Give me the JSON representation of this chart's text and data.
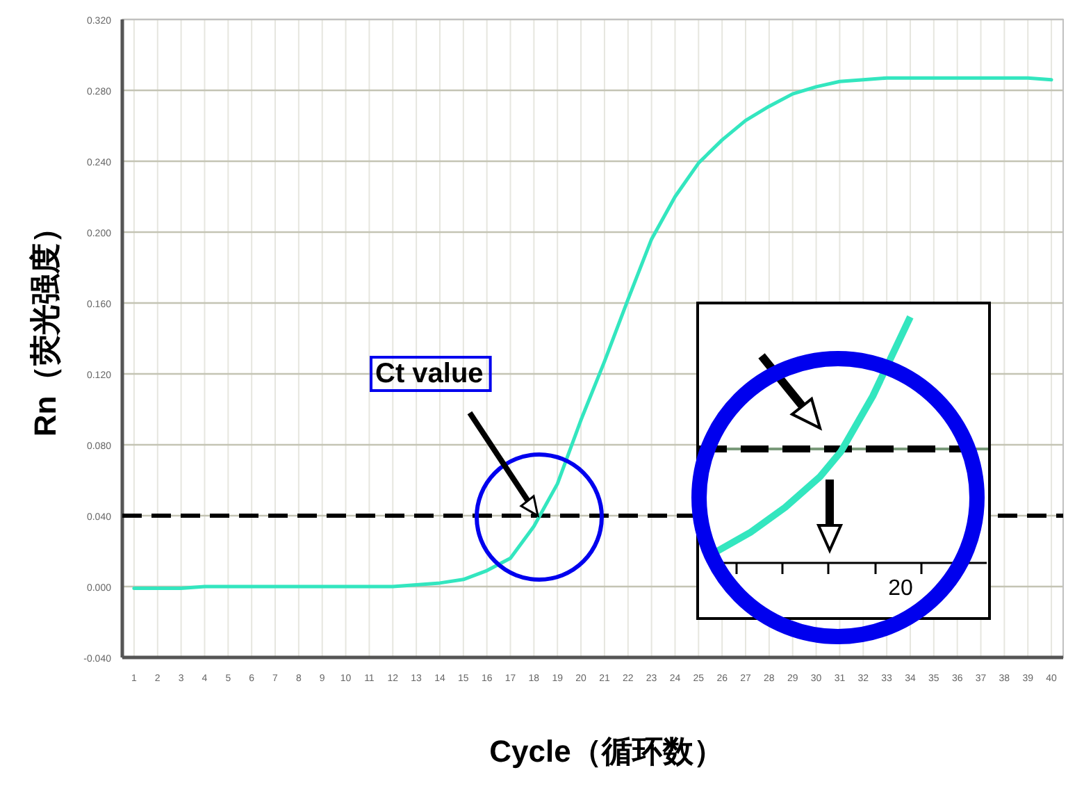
{
  "chart_data": {
    "type": "line",
    "xlabel": "Cycle（循环数）",
    "ylabel": "Rn（荧光强度）",
    "x": [
      1,
      2,
      3,
      4,
      5,
      6,
      7,
      8,
      9,
      10,
      11,
      12,
      13,
      14,
      15,
      16,
      17,
      18,
      19,
      20,
      21,
      22,
      23,
      24,
      25,
      26,
      27,
      28,
      29,
      30,
      31,
      32,
      33,
      34,
      35,
      36,
      37,
      38,
      39,
      40
    ],
    "series": [
      {
        "color": "#33e6bf",
        "values": [
          -0.001,
          -0.001,
          -0.001,
          0,
          0,
          0,
          0,
          0,
          0,
          0,
          0,
          0,
          0.001,
          0.002,
          0.004,
          0.009,
          0.016,
          0.034,
          0.058,
          0.094,
          0.127,
          0.162,
          0.196,
          0.22,
          0.239,
          0.252,
          0.263,
          0.271,
          0.278,
          0.282,
          0.285,
          0.286,
          0.287,
          0.287,
          0.287,
          0.287,
          0.287,
          0.287,
          0.287,
          0.286
        ]
      }
    ],
    "xlim": [
      0.5,
      40.5
    ],
    "xticks": [
      1,
      2,
      3,
      4,
      5,
      6,
      7,
      8,
      9,
      10,
      11,
      12,
      13,
      14,
      15,
      16,
      17,
      18,
      19,
      20,
      21,
      22,
      23,
      24,
      25,
      26,
      27,
      28,
      29,
      30,
      31,
      32,
      33,
      34,
      35,
      36,
      37,
      38,
      39,
      40
    ],
    "ylim": [
      -0.04,
      0.32
    ],
    "yticks": [
      {
        "value": -0.04,
        "label": "-0.040"
      },
      {
        "value": 0,
        "label": "0.000"
      },
      {
        "value": 0.04,
        "label": "0.040"
      },
      {
        "value": 0.08,
        "label": "0.080"
      },
      {
        "value": 0.12,
        "label": "0.120"
      },
      {
        "value": 0.16,
        "label": "0.160"
      },
      {
        "value": 0.2,
        "label": "0.200"
      },
      {
        "value": 0.24,
        "label": "0.240"
      },
      {
        "value": 0.28,
        "label": "0.280"
      },
      {
        "value": 0.32,
        "label": "0.320"
      }
    ],
    "ref_lines": [
      {
        "axis": "y",
        "value": 0.04,
        "color": "#000000",
        "line_style": "dashed"
      }
    ],
    "annotations": [
      "Ct value",
      "20"
    ],
    "grid": true,
    "marker": "none",
    "line_style": "solid"
  }
}
